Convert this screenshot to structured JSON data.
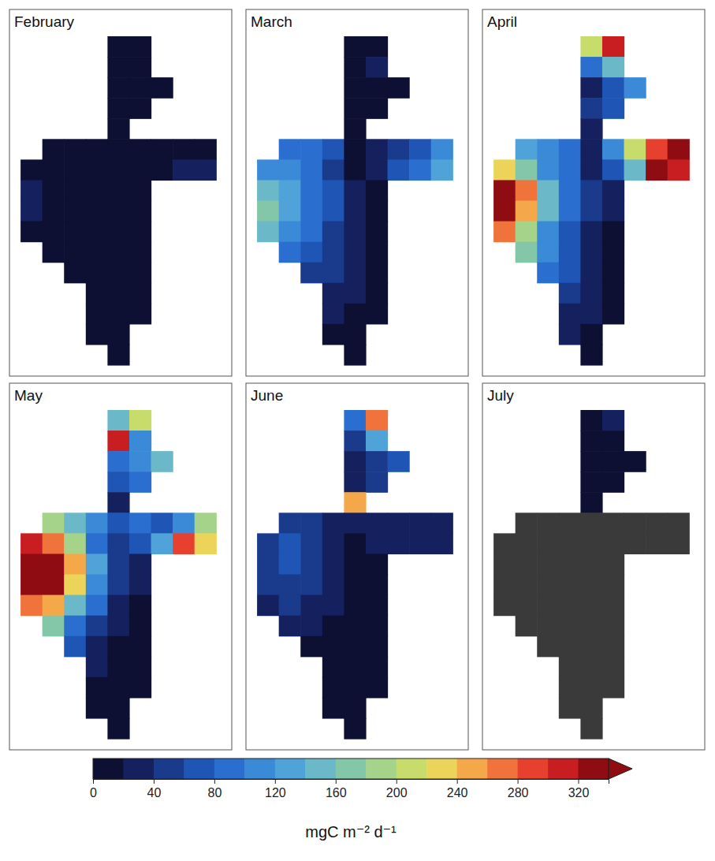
{
  "chart_data": {
    "type": "heatmap",
    "tick_labels": false,
    "col_start": [
      4,
      4,
      4,
      4,
      4,
      1,
      0,
      0,
      0,
      0,
      1,
      2,
      3,
      3,
      3,
      4
    ],
    "panels": [
      {
        "title": "February",
        "values": [
          [
            10,
            10
          ],
          [
            10,
            10
          ],
          [
            10,
            10,
            10
          ],
          [
            10,
            10
          ],
          [
            10
          ],
          [
            15,
            15,
            10,
            10,
            10,
            10,
            10,
            15
          ],
          [
            15,
            15,
            10,
            10,
            10,
            10,
            15,
            20,
            20
          ],
          [
            20,
            15,
            10,
            10,
            10,
            10
          ],
          [
            20,
            15,
            15,
            10,
            10,
            10
          ],
          [
            15,
            15,
            15,
            10,
            10,
            10
          ],
          [
            15,
            15,
            10,
            10,
            10
          ],
          [
            15,
            10,
            10,
            10
          ],
          [
            10,
            10,
            10
          ],
          [
            10,
            10,
            10
          ],
          [
            10,
            10
          ],
          [
            10
          ]
        ]
      },
      {
        "title": "March",
        "values": [
          [
            10,
            10
          ],
          [
            10,
            20
          ],
          [
            10,
            10,
            10
          ],
          [
            10,
            10
          ],
          [
            10
          ],
          [
            90,
            80,
            60,
            10,
            20,
            40,
            60,
            100
          ],
          [
            110,
            100,
            80,
            50,
            10,
            20,
            60,
            90,
            130
          ],
          [
            150,
            120,
            90,
            60,
            20,
            10
          ],
          [
            170,
            130,
            90,
            60,
            30,
            10
          ],
          [
            140,
            110,
            80,
            50,
            30,
            10
          ],
          [
            90,
            70,
            50,
            30,
            10
          ],
          [
            50,
            40,
            20,
            10
          ],
          [
            30,
            20,
            10
          ],
          [
            20,
            10,
            10
          ],
          [
            10,
            10
          ],
          [
            10
          ]
        ]
      },
      {
        "title": "April",
        "values": [
          [
            200,
            300
          ],
          [
            80,
            150
          ],
          [
            20,
            60,
            100
          ],
          [
            40,
            60
          ],
          [
            20
          ],
          [
            120,
            100,
            80,
            20,
            100,
            200,
            280,
            320
          ],
          [
            220,
            160,
            110,
            80,
            20,
            60,
            150,
            330,
            300
          ],
          [
            340,
            260,
            150,
            90,
            40,
            20
          ],
          [
            340,
            250,
            140,
            80,
            40,
            20
          ],
          [
            260,
            180,
            110,
            70,
            30,
            10
          ],
          [
            160,
            110,
            70,
            30,
            10
          ],
          [
            90,
            60,
            30,
            10
          ],
          [
            50,
            30,
            10
          ],
          [
            30,
            20,
            10
          ],
          [
            20,
            10
          ],
          [
            10
          ]
        ]
      },
      {
        "title": "May",
        "values": [
          [
            150,
            200
          ],
          [
            300,
            100
          ],
          [
            80,
            100,
            150
          ],
          [
            60,
            80
          ],
          [
            20
          ],
          [
            180,
            150,
            100,
            60,
            80,
            60,
            100,
            180
          ],
          [
            300,
            260,
            180,
            90,
            40,
            60,
            120,
            280,
            220
          ],
          [
            340,
            340,
            240,
            120,
            50,
            20
          ],
          [
            340,
            330,
            220,
            110,
            40,
            20
          ],
          [
            260,
            240,
            150,
            80,
            30,
            10
          ],
          [
            160,
            90,
            50,
            20,
            10
          ],
          [
            60,
            30,
            10,
            10
          ],
          [
            20,
            10,
            10
          ],
          [
            10,
            10,
            10
          ],
          [
            10,
            10
          ],
          [
            10
          ]
        ]
      },
      {
        "title": "June",
        "values": [
          [
            80,
            260
          ],
          [
            40,
            120
          ],
          [
            20,
            40,
            60
          ],
          [
            20,
            40
          ],
          [
            250
          ],
          [
            40,
            40,
            30,
            20,
            20,
            30,
            20,
            20
          ],
          [
            50,
            60,
            50,
            30,
            10,
            20,
            20,
            20,
            20
          ],
          [
            40,
            60,
            50,
            30,
            10,
            10
          ],
          [
            40,
            50,
            40,
            20,
            10,
            10
          ],
          [
            30,
            40,
            30,
            20,
            10,
            10
          ],
          [
            20,
            20,
            10,
            10,
            10
          ],
          [
            10,
            10,
            10,
            10
          ],
          [
            10,
            10,
            10
          ],
          [
            10,
            10,
            10
          ],
          [
            10,
            10
          ],
          [
            10
          ]
        ]
      },
      {
        "title": "July",
        "values": [
          [
            10,
            20
          ],
          [
            10,
            10
          ],
          [
            10,
            10,
            10
          ],
          [
            10,
            10
          ],
          [
            10
          ],
          [
            null,
            null,
            null,
            null,
            null,
            null,
            null,
            null
          ],
          [
            null,
            null,
            null,
            null,
            null,
            null,
            null,
            null,
            null
          ],
          [
            null,
            null,
            null,
            null,
            null,
            null
          ],
          [
            null,
            null,
            null,
            null,
            null,
            null
          ],
          [
            null,
            null,
            null,
            null,
            null,
            null
          ],
          [
            null,
            null,
            null,
            null,
            null
          ],
          [
            null,
            null,
            null,
            null
          ],
          [
            null,
            null,
            null
          ],
          [
            null,
            null,
            null
          ],
          [
            null,
            null
          ],
          [
            null
          ]
        ]
      }
    ],
    "colorbar": {
      "range": [
        0,
        340
      ],
      "ticks": [
        0,
        40,
        80,
        120,
        160,
        200,
        240,
        280,
        320
      ],
      "label": "mgC m⁻² d⁻¹"
    }
  }
}
